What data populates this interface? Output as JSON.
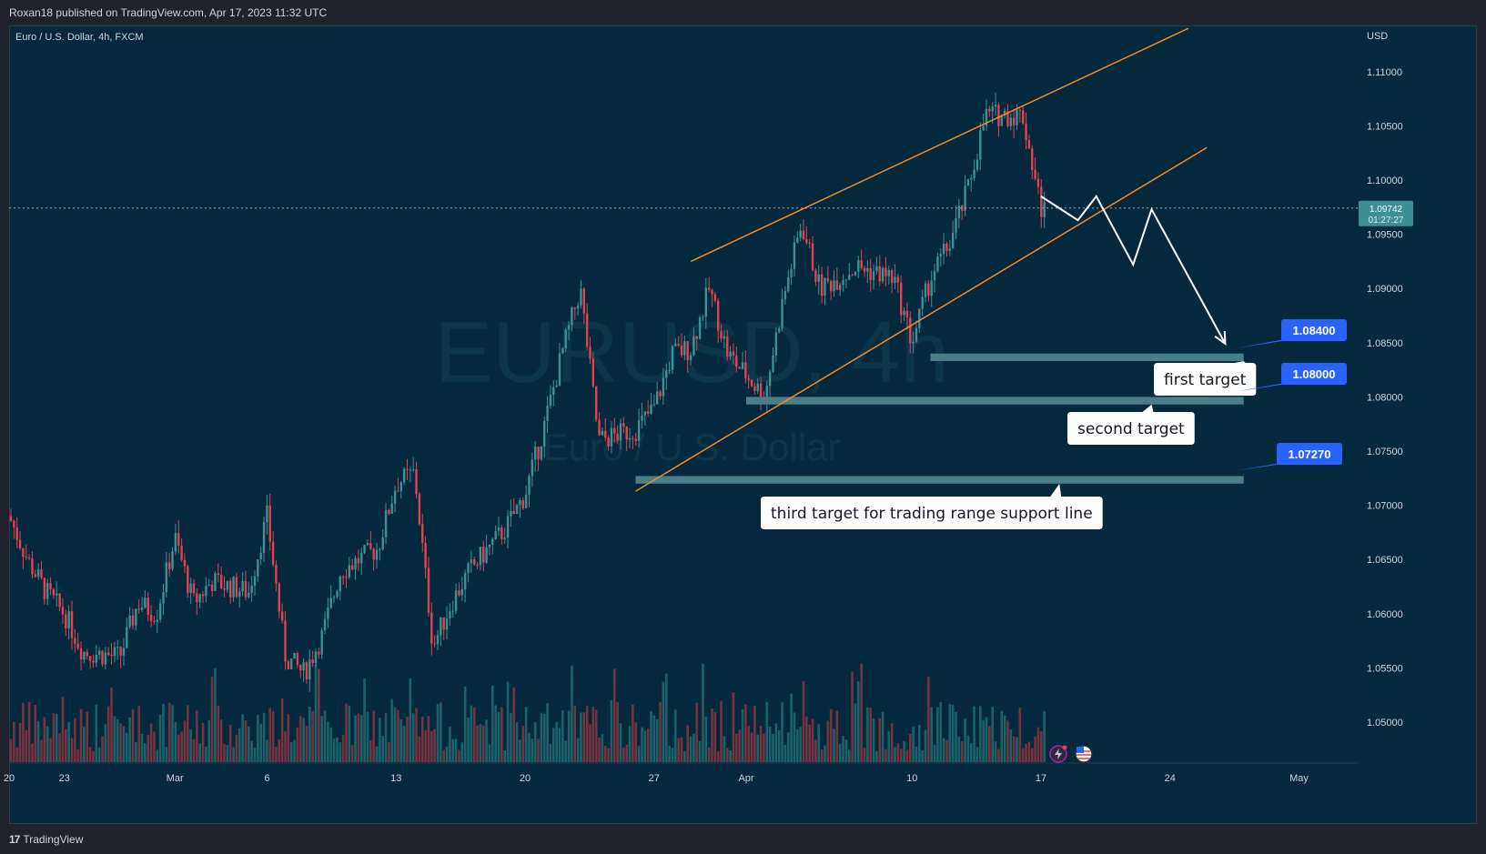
{
  "header": {
    "publisher": "Roxan18 published on TradingView.com, Apr 17, 2023 11:32 UTC"
  },
  "footer": {
    "brand": "TradingView",
    "icon": "tradingview-logo-icon"
  },
  "colors": {
    "background": "#05293c",
    "up": "#3f8f93",
    "down": "#e0434f",
    "channel": "#f5892b",
    "zone": "#4a7f88",
    "tag": "#2962ff",
    "price_tag": "#3d8f93"
  },
  "chart_data": {
    "type": "candlestick",
    "symbol_label": "Euro / U.S. Dollar, 4h, FXCM",
    "currency": "USD",
    "watermark": {
      "ticker": "EURUSD, 4h",
      "name": "Euro / U.S. Dollar"
    },
    "ylim": [
      1.0455,
      1.1155
    ],
    "y_ticks": [
      "1.11000",
      "1.10500",
      "1.10000",
      "1.09500",
      "1.09000",
      "1.08500",
      "1.08000",
      "1.07500",
      "1.07000",
      "1.06500",
      "1.06000",
      "1.05500",
      "1.05000"
    ],
    "x_ticks": [
      {
        "label": "20",
        "date": "2023-02-20"
      },
      {
        "label": "23",
        "date": "2023-02-23"
      },
      {
        "label": "Mar",
        "date": "2023-03-01"
      },
      {
        "label": "6",
        "date": "2023-03-06"
      },
      {
        "label": "13",
        "date": "2023-03-13"
      },
      {
        "label": "20",
        "date": "2023-03-20"
      },
      {
        "label": "27",
        "date": "2023-03-27"
      },
      {
        "label": "Apr",
        "date": "2023-04-01"
      },
      {
        "label": "10",
        "date": "2023-04-10"
      },
      {
        "label": "17",
        "date": "2023-04-17"
      },
      {
        "label": "24",
        "date": "2023-04-24"
      },
      {
        "label": "May",
        "date": "2023-05-01"
      }
    ],
    "current_price": {
      "price": "1.09742",
      "countdown": "01:27:27",
      "value": 1.09742
    },
    "price_path": [
      [
        "2023-02-17",
        1.069
      ],
      [
        "2023-02-20",
        1.069
      ],
      [
        "2023-02-21",
        1.065
      ],
      [
        "2023-02-22",
        1.062
      ],
      [
        "2023-02-23",
        1.06
      ],
      [
        "2023-02-24",
        1.0565
      ],
      [
        "2023-02-26",
        1.056
      ],
      [
        "2023-02-27",
        1.061
      ],
      [
        "2023-02-28",
        1.06
      ],
      [
        "2023-03-01",
        1.067
      ],
      [
        "2023-03-02",
        1.061
      ],
      [
        "2023-03-03",
        1.063
      ],
      [
        "2023-03-05",
        1.062
      ],
      [
        "2023-03-06",
        1.069
      ],
      [
        "2023-03-07",
        1.056
      ],
      [
        "2023-03-08",
        1.0545
      ],
      [
        "2023-03-09",
        1.058
      ],
      [
        "2023-03-10",
        1.064
      ],
      [
        "2023-03-12",
        1.066
      ],
      [
        "2023-03-13",
        1.072
      ],
      [
        "2023-03-14",
        1.073
      ],
      [
        "2023-03-15",
        1.057
      ],
      [
        "2023-03-16",
        1.061
      ],
      [
        "2023-03-17",
        1.064
      ],
      [
        "2023-03-19",
        1.068
      ],
      [
        "2023-03-20",
        1.071
      ],
      [
        "2023-03-21",
        1.077
      ],
      [
        "2023-03-22",
        1.084
      ],
      [
        "2023-03-23",
        1.09
      ],
      [
        "2023-03-24",
        1.076
      ],
      [
        "2023-03-26",
        1.077
      ],
      [
        "2023-03-27",
        1.079
      ],
      [
        "2023-03-28",
        1.084
      ],
      [
        "2023-03-29",
        1.0845
      ],
      [
        "2023-03-30",
        1.09
      ],
      [
        "2023-03-31",
        1.084
      ],
      [
        "2023-04-02",
        1.08
      ],
      [
        "2023-04-03",
        1.089
      ],
      [
        "2023-04-04",
        1.096
      ],
      [
        "2023-04-05",
        1.09
      ],
      [
        "2023-04-06",
        1.091
      ],
      [
        "2023-04-07",
        1.092
      ],
      [
        "2023-04-09",
        1.091
      ],
      [
        "2023-04-10",
        1.085
      ],
      [
        "2023-04-11",
        1.091
      ],
      [
        "2023-04-12",
        1.094
      ],
      [
        "2023-04-13",
        1.099
      ],
      [
        "2023-04-14",
        1.106
      ],
      [
        "2023-04-16",
        1.106
      ],
      [
        "2023-04-17",
        1.0974
      ]
    ],
    "channel_lines": [
      {
        "from": [
          "2023-03-29",
          1.0925
        ],
        "to": [
          "2023-04-25",
          1.114
        ]
      },
      {
        "from": [
          "2023-03-26",
          1.0713
        ],
        "to": [
          "2023-04-26",
          1.103
        ]
      }
    ],
    "projection_path": [
      [
        "2023-04-17",
        1.0985
      ],
      [
        "2023-04-19",
        1.0963
      ],
      [
        "2023-04-20",
        1.0985
      ],
      [
        "2023-04-22",
        1.0922
      ],
      [
        "2023-04-23",
        1.0973
      ],
      [
        "2023-04-27",
        1.0849
      ]
    ],
    "target_zones": [
      {
        "from": "2023-04-11",
        "to": "2023-04-28",
        "y": [
          1.0833,
          1.084
        ]
      },
      {
        "from": "2023-04-01",
        "to": "2023-04-28",
        "y": [
          1.0793,
          1.08
        ]
      },
      {
        "from": "2023-03-26",
        "to": "2023-04-28",
        "y": [
          1.072,
          1.0727
        ]
      }
    ],
    "price_tags": [
      {
        "label": "1.08400",
        "value": 1.084,
        "anchor": [
          "2023-04-28",
          1.084
        ]
      },
      {
        "label": "1.08000",
        "value": 1.08,
        "anchor": [
          "2023-04-28",
          1.08
        ]
      },
      {
        "label": "1.07270",
        "value": 1.0727,
        "anchor": [
          "2023-04-28",
          1.0727
        ]
      }
    ],
    "annotations": [
      {
        "text": "first target",
        "anchor": [
          "2023-04-28",
          1.0833
        ]
      },
      {
        "text": "second target",
        "anchor": [
          "2023-04-23",
          1.0793
        ]
      },
      {
        "text": "third target for trading range support line",
        "anchor": [
          "2023-04-18",
          1.072
        ]
      }
    ],
    "icons": [
      "lightning-icon",
      "us-flag-icon"
    ]
  }
}
